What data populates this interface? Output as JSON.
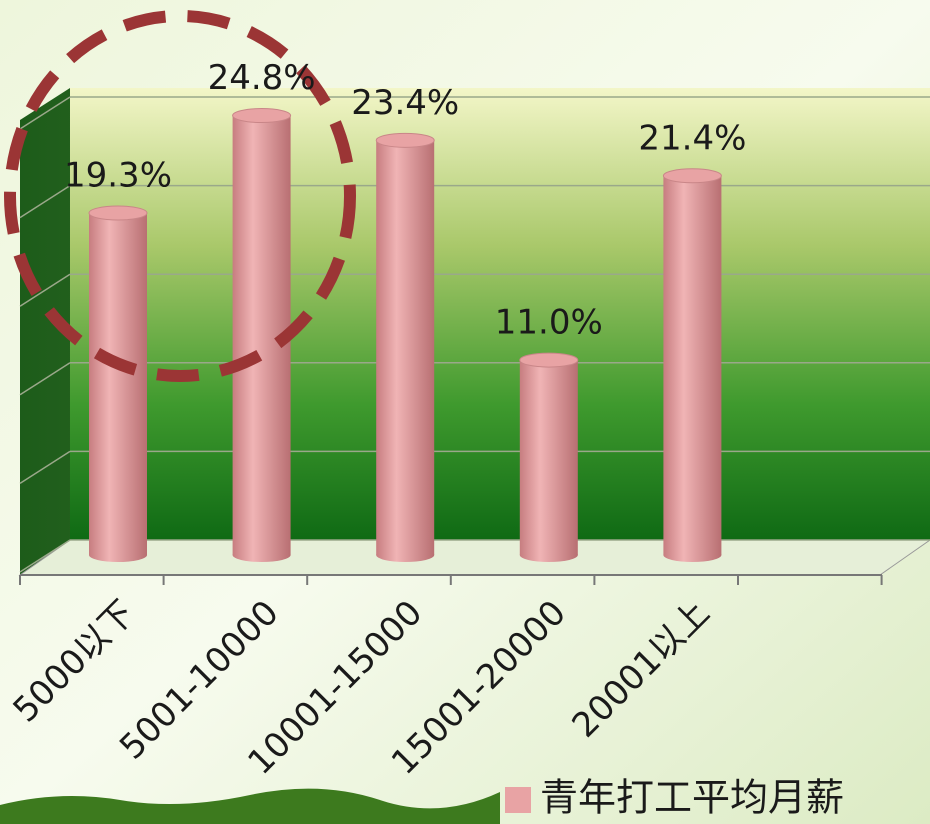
{
  "chart_data": {
    "type": "bar",
    "categories": [
      "5000以下",
      "5001-10000",
      "10001-15000",
      "15001-20000",
      "20001以上"
    ],
    "series": [
      {
        "name": "青年打工平均月薪",
        "color": "#e8a3a4",
        "values": [
          19.3,
          24.8,
          23.4,
          11.0,
          21.4
        ],
        "value_labels": [
          "19.3%",
          "24.8%",
          "23.4%",
          "11.0%",
          "21.4%"
        ]
      }
    ],
    "ylim": [
      0,
      25
    ],
    "yticks": [
      0,
      5,
      10,
      15,
      20,
      25
    ],
    "grid": true
  }
}
